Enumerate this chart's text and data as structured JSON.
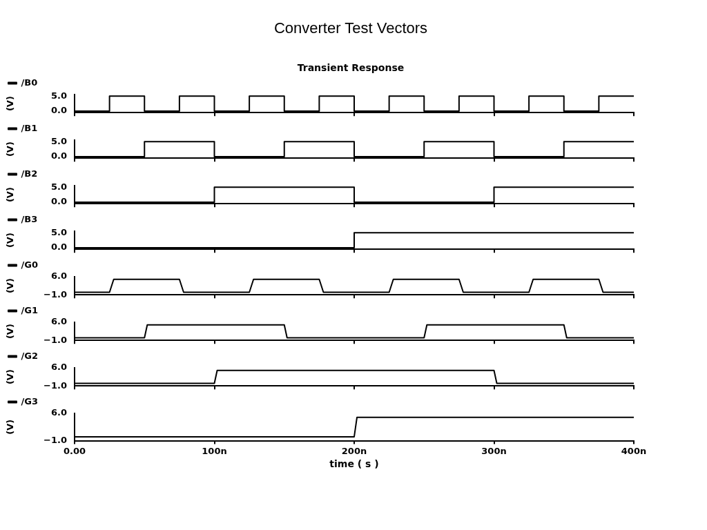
{
  "chart_data": [
    {
      "type": "step",
      "title": "Converter Test Vectors",
      "subtitle": "Transient Response",
      "ylabel": "(V)",
      "legend": "top left",
      "tick_labels": "y",
      "xlim": [
        0,
        400
      ],
      "xticks": [
        0,
        100,
        200,
        300,
        400
      ],
      "ylim": [
        -0.5,
        5.5
      ],
      "yticks": [
        {
          "value": 5,
          "label": "5.0"
        },
        {
          "value": 0,
          "label": "0.0"
        }
      ],
      "series": [
        {
          "name": "/B0",
          "color": "#000000",
          "x": [
            0,
            25,
            50,
            75,
            100,
            125,
            150,
            175,
            200,
            225,
            250,
            275,
            300,
            325,
            350,
            375,
            400
          ],
          "values": [
            0,
            5,
            0,
            5,
            0,
            5,
            0,
            5,
            0,
            5,
            0,
            5,
            0,
            5,
            0,
            5,
            5
          ]
        }
      ]
    },
    {
      "type": "step",
      "ylabel": "(V)",
      "legend": "top left",
      "tick_labels": "y",
      "xlim": [
        0,
        400
      ],
      "xticks": [
        0,
        100,
        200,
        300,
        400
      ],
      "ylim": [
        -0.5,
        5.5
      ],
      "yticks": [
        {
          "value": 5,
          "label": "5.0"
        },
        {
          "value": 0,
          "label": "0.0"
        }
      ],
      "series": [
        {
          "name": "/B1",
          "color": "#000000",
          "x": [
            0,
            50,
            100,
            150,
            200,
            250,
            300,
            350,
            400
          ],
          "values": [
            0,
            5,
            0,
            5,
            0,
            5,
            0,
            5,
            5
          ]
        }
      ]
    },
    {
      "type": "step",
      "ylabel": "(V)",
      "legend": "top left",
      "tick_labels": "y",
      "xlim": [
        0,
        400
      ],
      "xticks": [
        0,
        100,
        200,
        300,
        400
      ],
      "ylim": [
        -0.5,
        5.5
      ],
      "yticks": [
        {
          "value": 5,
          "label": "5.0"
        },
        {
          "value": 0,
          "label": "0.0"
        }
      ],
      "series": [
        {
          "name": "/B2",
          "color": "#000000",
          "x": [
            0,
            100,
            200,
            300,
            400
          ],
          "values": [
            0,
            5,
            0,
            5,
            5
          ]
        }
      ]
    },
    {
      "type": "step",
      "ylabel": "(V)",
      "legend": "top left",
      "tick_labels": "y",
      "xlim": [
        0,
        400
      ],
      "xticks": [
        0,
        100,
        200,
        300,
        400
      ],
      "ylim": [
        -0.5,
        5.5
      ],
      "yticks": [
        {
          "value": 5,
          "label": "5.0"
        },
        {
          "value": 0,
          "label": "0.0"
        }
      ],
      "series": [
        {
          "name": "/B3",
          "color": "#000000",
          "x": [
            0,
            200,
            400
          ],
          "values": [
            0,
            5,
            5
          ]
        }
      ]
    },
    {
      "type": "line",
      "ylabel": "(V)",
      "legend": "top left",
      "tick_labels": "y",
      "xlim": [
        0,
        400
      ],
      "xticks": [
        0,
        100,
        200,
        300,
        400
      ],
      "ylim": [
        -1,
        6
      ],
      "yticks": [
        {
          "value": 6,
          "label": "6.0"
        },
        {
          "value": -1,
          "label": "−1.0"
        }
      ],
      "series": [
        {
          "name": "/G0",
          "color": "#000000",
          "x": [
            0,
            25,
            28,
            75,
            78,
            125,
            128,
            175,
            178,
            225,
            228,
            275,
            278,
            325,
            328,
            375,
            378,
            400
          ],
          "values": [
            0,
            0,
            5,
            5,
            0,
            0,
            5,
            5,
            0,
            0,
            5,
            5,
            0,
            0,
            5,
            5,
            0,
            0
          ]
        }
      ]
    },
    {
      "type": "line",
      "ylabel": "(V)",
      "legend": "top left",
      "tick_labels": "y",
      "xlim": [
        0,
        400
      ],
      "xticks": [
        0,
        100,
        200,
        300,
        400
      ],
      "ylim": [
        -1,
        6
      ],
      "yticks": [
        {
          "value": 6,
          "label": "6.0"
        },
        {
          "value": -1,
          "label": "−1.0"
        }
      ],
      "series": [
        {
          "name": "/G1",
          "color": "#000000",
          "x": [
            0,
            50,
            52,
            150,
            152,
            250,
            252,
            350,
            352,
            400
          ],
          "values": [
            0,
            0,
            5,
            5,
            0,
            0,
            5,
            5,
            0,
            0
          ]
        }
      ]
    },
    {
      "type": "line",
      "ylabel": "(V)",
      "legend": "top left",
      "tick_labels": "y",
      "xlim": [
        0,
        400
      ],
      "xticks": [
        0,
        100,
        200,
        300,
        400
      ],
      "ylim": [
        -1,
        6
      ],
      "yticks": [
        {
          "value": 6,
          "label": "6.0"
        },
        {
          "value": -1,
          "label": "−1.0"
        }
      ],
      "series": [
        {
          "name": "/G2",
          "color": "#000000",
          "x": [
            0,
            100,
            102,
            300,
            302,
            400
          ],
          "values": [
            0,
            0,
            5,
            5,
            0,
            0
          ]
        }
      ]
    },
    {
      "type": "line",
      "ylabel": "(V)",
      "xlabel": "time ( s )",
      "legend": "top left",
      "xlim": [
        0,
        400
      ],
      "ylim": [
        -1,
        6
      ],
      "yticks": [
        {
          "value": 6,
          "label": "6.0"
        },
        {
          "value": -1,
          "label": "−1.0"
        }
      ],
      "xticks": [
        {
          "value": 0,
          "label": "0.00"
        },
        {
          "value": 100,
          "label": "100n"
        },
        {
          "value": 200,
          "label": "200n"
        },
        {
          "value": 300,
          "label": "300n"
        },
        {
          "value": 400,
          "label": "400n"
        }
      ],
      "series": [
        {
          "name": "/G3",
          "color": "#000000",
          "x": [
            0,
            200,
            202,
            400
          ],
          "values": [
            0,
            0,
            5,
            5
          ]
        }
      ]
    }
  ]
}
